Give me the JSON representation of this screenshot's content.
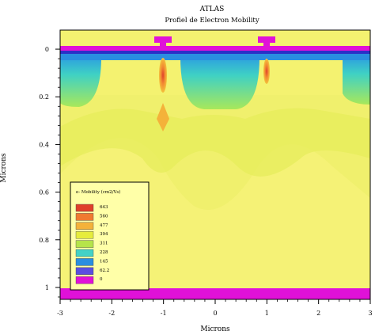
{
  "header": {
    "title": "ATLAS",
    "subtitle": "Profiel de Electron Mobility"
  },
  "chart_data": {
    "type": "heatmap",
    "title": "ATLAS",
    "subtitle": "Profiel de Electron Mobility",
    "xlabel": "Microns",
    "ylabel": "Microns",
    "xlim": [
      -3,
      3
    ],
    "ylim": [
      1.05,
      -0.08
    ],
    "x_ticks": [
      "-3",
      "-2",
      "-1",
      "0",
      "1",
      "2",
      "3"
    ],
    "y_ticks": [
      "0",
      "0.2",
      "0.4",
      "0.6",
      "0.8",
      "1"
    ],
    "y_invert": true,
    "legend": {
      "title": "e- Mobility (cm2/Vs)",
      "placement": "bottom-left",
      "levels": [
        {
          "label": "643",
          "color": "#e0402a"
        },
        {
          "label": "560",
          "color": "#f07a30"
        },
        {
          "label": "477",
          "color": "#f4b23a"
        },
        {
          "label": "394",
          "color": "#e6ec3c"
        },
        {
          "label": "311",
          "color": "#b6e44a"
        },
        {
          "label": "228",
          "color": "#44d2c6"
        },
        {
          "label": "145",
          "color": "#2a8ee0"
        },
        {
          "label": "62.2",
          "color": "#5a4ee0"
        },
        {
          "label": "0",
          "color": "#e011d8"
        }
      ]
    },
    "regions": {
      "bulk_mobility_level": "394",
      "surface_layer": {
        "y_range": [
          -0.01,
          0.0
        ],
        "level": "0"
      },
      "bottom_contact": {
        "y_range": [
          1.0,
          1.05
        ],
        "level": "0"
      },
      "gate_contacts_x": [
        -1,
        1
      ],
      "channel_peaks_x": [
        -1,
        1
      ],
      "channel_peak_level": "643"
    },
    "colors": {
      "background": "#f4f270",
      "electrode": "#e011d8",
      "low_mobility": "#44d2c6",
      "surface_blue": "#2a8ee0"
    }
  }
}
